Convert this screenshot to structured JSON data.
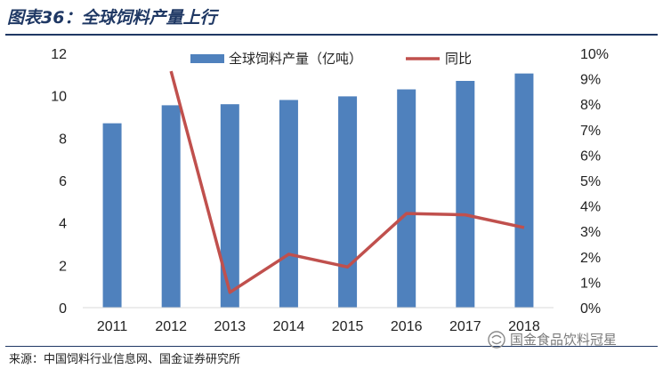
{
  "title": "图表36：全球饲料产量上行",
  "source": "来源：中国饲料行业信息网、国金证券研究所",
  "watermark": "国金食品饮料冠星",
  "colors": {
    "bar": "#4f81bd",
    "line": "#c0504d",
    "title": "#1f3864"
  },
  "chart_data": {
    "type": "bar",
    "categories": [
      "2011",
      "2012",
      "2013",
      "2014",
      "2015",
      "2016",
      "2017",
      "2018"
    ],
    "series": [
      {
        "name": "全球饲料产量（亿吨）",
        "type": "bar",
        "axis": "left",
        "values": [
          8.7,
          9.55,
          9.6,
          9.8,
          9.97,
          10.3,
          10.7,
          11.05
        ]
      },
      {
        "name": "同比",
        "type": "line",
        "axis": "right",
        "values": [
          null,
          0.093,
          0.006,
          0.021,
          0.016,
          0.037,
          0.0365,
          0.0315
        ]
      }
    ],
    "left_axis": {
      "ylim": [
        0,
        12
      ],
      "ticks": [
        "0",
        "2",
        "4",
        "6",
        "8",
        "10",
        "12"
      ]
    },
    "right_axis": {
      "ylim": [
        0,
        0.1
      ],
      "ticks": [
        "0%",
        "1%",
        "2%",
        "3%",
        "4%",
        "5%",
        "6%",
        "7%",
        "8%",
        "9%",
        "10%"
      ]
    },
    "grid": false,
    "legend": "top-center"
  }
}
